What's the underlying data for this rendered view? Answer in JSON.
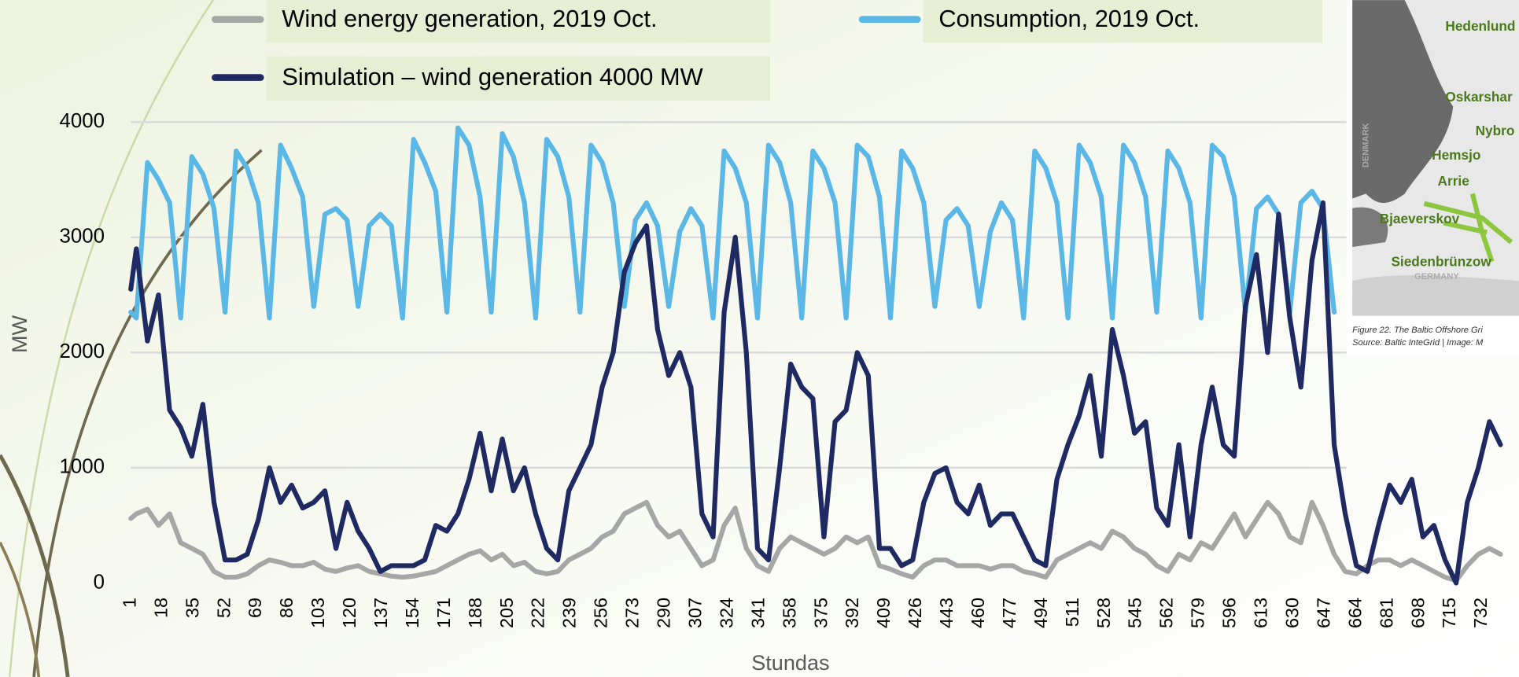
{
  "chart_data": {
    "type": "line",
    "x_label": "Stundas",
    "y_label": "MW",
    "x": [
      1,
      4,
      10,
      16,
      22,
      28,
      34,
      40,
      46,
      52,
      58,
      64,
      70,
      76,
      82,
      88,
      94,
      100,
      106,
      112,
      118,
      124,
      130,
      136,
      142,
      148,
      154,
      160,
      166,
      172,
      178,
      184,
      190,
      196,
      202,
      208,
      214,
      220,
      226,
      232,
      238,
      244,
      250,
      256,
      262,
      268,
      274,
      280,
      286,
      292,
      298,
      304,
      310,
      316,
      322,
      328,
      334,
      340,
      346,
      352,
      358,
      364,
      370,
      376,
      382,
      388,
      394,
      400,
      406,
      412,
      418,
      424,
      430,
      436,
      442,
      448,
      454,
      460,
      466,
      472,
      478,
      484,
      490,
      496,
      502,
      508,
      514,
      520,
      526,
      532,
      538,
      544,
      550,
      556,
      562,
      568,
      574,
      580,
      586,
      592,
      598,
      604,
      610,
      616,
      622,
      628,
      634,
      640,
      646,
      652,
      658,
      664,
      670,
      676,
      682,
      688,
      694,
      700,
      706,
      712,
      718,
      724,
      730,
      736,
      742
    ],
    "series": [
      {
        "name": "Wind energy generation, 2019 Oct.",
        "color": "#a6a6a6",
        "values": [
          560,
          600,
          640,
          500,
          600,
          350,
          300,
          250,
          100,
          50,
          50,
          80,
          150,
          200,
          180,
          150,
          150,
          180,
          120,
          100,
          130,
          150,
          100,
          80,
          60,
          50,
          60,
          80,
          100,
          150,
          200,
          250,
          280,
          200,
          250,
          150,
          180,
          100,
          80,
          100,
          200,
          250,
          300,
          400,
          450,
          600,
          650,
          700,
          500,
          400,
          450,
          300,
          150,
          200,
          500,
          650,
          300,
          150,
          100,
          300,
          400,
          350,
          300,
          250,
          300,
          400,
          350,
          400,
          150,
          120,
          80,
          50,
          150,
          200,
          200,
          150,
          150,
          150,
          120,
          150,
          150,
          100,
          80,
          50,
          200,
          250,
          300,
          350,
          300,
          450,
          400,
          300,
          250,
          150,
          100,
          250,
          200,
          350,
          300,
          450,
          600,
          400,
          550,
          700,
          600,
          400,
          350,
          700,
          500,
          250,
          100,
          80,
          150,
          200,
          200,
          150,
          200,
          150,
          100,
          50,
          20,
          150,
          250,
          300,
          250
        ]
      },
      {
        "name": "Consumption, 2019 Oct.",
        "color": "#5bb8e6",
        "values": [
          2350,
          2300,
          3650,
          3500,
          3300,
          2300,
          3700,
          3550,
          3250,
          2350,
          3750,
          3600,
          3300,
          2300,
          3800,
          3600,
          3350,
          2400,
          3200,
          3250,
          3150,
          2400,
          3100,
          3200,
          3100,
          2300,
          3850,
          3650,
          3400,
          2350,
          3950,
          3800,
          3350,
          2350,
          3900,
          3700,
          3300,
          2300,
          3850,
          3700,
          3350,
          2350,
          3800,
          3650,
          3300,
          2400,
          3150,
          3300,
          3100,
          2400,
          3050,
          3250,
          3100,
          2300,
          3750,
          3600,
          3300,
          2300,
          3800,
          3650,
          3300,
          2300,
          3750,
          3600,
          3300,
          2300,
          3800,
          3700,
          3350,
          2300,
          3750,
          3600,
          3300,
          2400,
          3150,
          3250,
          3100,
          2400,
          3050,
          3300,
          3150,
          2300,
          3750,
          3600,
          3300,
          2300,
          3800,
          3650,
          3350,
          2300,
          3800,
          3650,
          3350,
          2350,
          3750,
          3600,
          3300,
          2300,
          3800,
          3700,
          3350,
          2350,
          3250,
          3350,
          3200,
          2350,
          3300,
          3400,
          3250,
          2350,
          null,
          null,
          null,
          null,
          null,
          null,
          null,
          null,
          null,
          null,
          null,
          null,
          null,
          null,
          null
        ]
      },
      {
        "name": "Simulation – wind generation 4000 MW",
        "color": "#1f2a63",
        "values": [
          2550,
          2900,
          2100,
          2500,
          1500,
          1350,
          1100,
          1550,
          700,
          200,
          200,
          250,
          550,
          1000,
          700,
          850,
          650,
          700,
          800,
          300,
          700,
          450,
          300,
          100,
          150,
          150,
          150,
          200,
          500,
          450,
          600,
          900,
          1300,
          800,
          1250,
          800,
          1000,
          600,
          300,
          200,
          800,
          1000,
          1200,
          1700,
          2000,
          2700,
          2950,
          3100,
          2200,
          1800,
          2000,
          1700,
          600,
          400,
          2350,
          3000,
          2000,
          300,
          200,
          1000,
          1900,
          1700,
          1600,
          400,
          1400,
          1500,
          2000,
          1800,
          300,
          300,
          150,
          200,
          700,
          950,
          1000,
          700,
          600,
          850,
          500,
          600,
          600,
          400,
          200,
          150,
          900,
          1200,
          1450,
          1800,
          1100,
          2200,
          1800,
          1300,
          1400,
          650,
          500,
          1200,
          400,
          1200,
          1700,
          1200,
          1100,
          2400,
          2850,
          2000,
          3200,
          2300,
          1700,
          2800,
          3300,
          1200,
          600,
          150,
          100,
          500,
          850,
          700,
          900,
          400,
          500,
          200,
          0,
          700,
          1000,
          1400,
          1200
        ]
      }
    ],
    "xlim": [
      1,
      752
    ],
    "xticks": [
      1,
      18,
      35,
      52,
      69,
      86,
      103,
      120,
      137,
      154,
      171,
      188,
      205,
      222,
      239,
      256,
      273,
      290,
      307,
      324,
      341,
      358,
      375,
      392,
      409,
      426,
      443,
      460,
      477,
      494,
      511,
      528,
      545,
      562,
      579,
      596,
      613,
      630,
      647,
      664,
      681,
      698,
      715,
      732
    ],
    "ylim": [
      0,
      4000
    ],
    "yticks": [
      0,
      1000,
      2000,
      3000,
      4000
    ],
    "grid": true,
    "legend": "top"
  },
  "map_inset": {
    "labels": [
      "Hedenlund",
      "Oskarshar",
      "Nybro",
      "Hemsjo",
      "Arrie",
      "Bjaeverskov",
      "Siedenbrünzow",
      "DENMARK",
      "GERMANY"
    ],
    "caption": [
      "Figure 22. The Baltic Offshore Gri",
      "Source: Baltic InteGrid | Image: M"
    ]
  }
}
